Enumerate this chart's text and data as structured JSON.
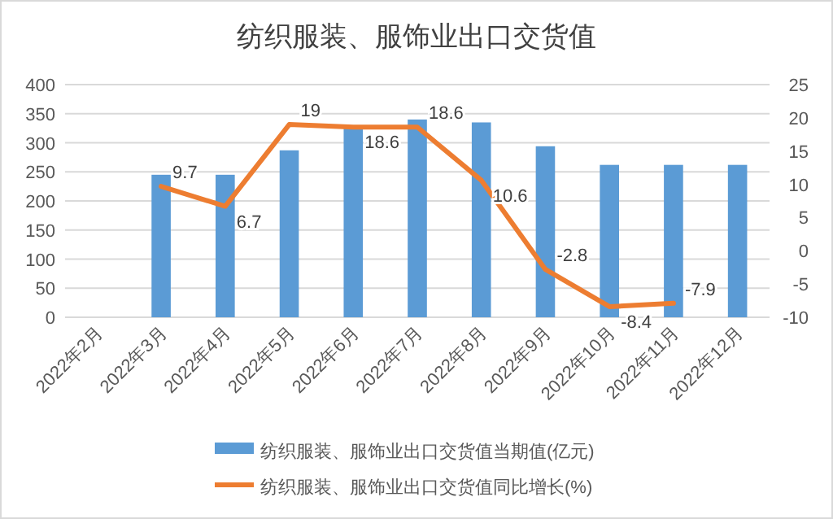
{
  "chart_data": {
    "type": "bar",
    "title": "纺织服装、服饰业出口交货值",
    "categories": [
      "2022年2月",
      "2022年3月",
      "2022年4月",
      "2022年5月",
      "2022年6月",
      "2022年7月",
      "2022年8月",
      "2022年9月",
      "2022年10月",
      "2022年11月",
      "2022年12月"
    ],
    "series": [
      {
        "name": "纺织服装、服饰业出口交货值当期值(亿元)",
        "color": "#5b9bd5",
        "values": [
          null,
          245,
          245,
          287,
          325,
          340,
          335,
          294,
          262,
          262,
          262
        ]
      },
      {
        "name": "纺织服装、服饰业出口交货值同比增长(%)",
        "type": "line",
        "axis": "y2",
        "color": "#ed7d31",
        "values": [
          null,
          9.7,
          6.7,
          19,
          18.6,
          18.6,
          10.6,
          -2.8,
          -8.4,
          -7.9,
          null
        ],
        "value_labels": [
          null,
          "9.7",
          "6.7",
          "19",
          "18.6",
          "18.6",
          "10.6",
          "-2.8",
          "-8.4",
          "-7.9",
          null
        ]
      }
    ],
    "ylim": [
      0,
      400
    ],
    "yticks": [
      0,
      50,
      100,
      150,
      200,
      250,
      300,
      350,
      400
    ],
    "y2lim": [
      -10,
      25
    ],
    "y2ticks": [
      -10,
      -5,
      0,
      5,
      10,
      15,
      20,
      25
    ],
    "grid": "y",
    "legend": "bottom"
  }
}
